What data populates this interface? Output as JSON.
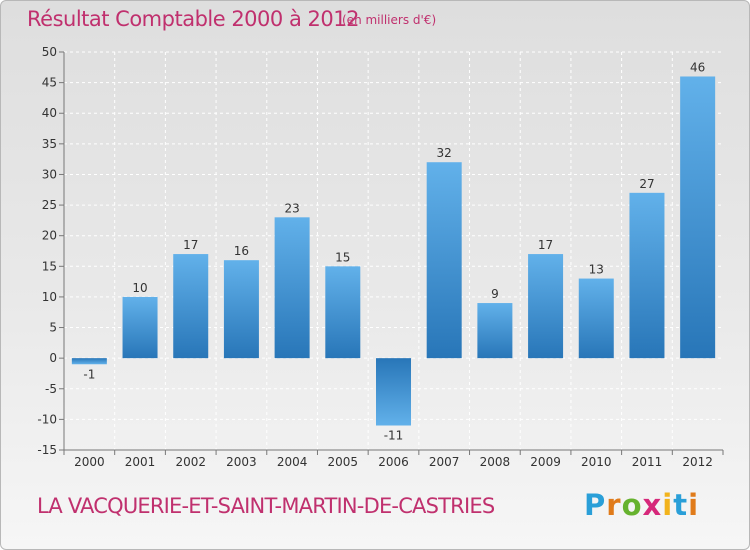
{
  "title": "Résultat Comptable 2000 à 2012",
  "subtitle": "(en milliers d'€)",
  "location": "LA VACQUERIE-ET-SAINT-MARTIN-DE-CASTRIES",
  "brand": {
    "letters": [
      "P",
      "r",
      "o",
      "x",
      "i",
      "t",
      "i"
    ],
    "colors": [
      "#2a9fd8",
      "#e07b1a",
      "#66b22e",
      "#d6287a",
      "#f2b31c",
      "#2a9fd8",
      "#e07b1a"
    ]
  },
  "colors": {
    "title": "#c0306e",
    "bar_light": "#62b1ea",
    "bar_dark": "#2876b8"
  },
  "chart_data": {
    "type": "bar",
    "categories": [
      "2000",
      "2001",
      "2002",
      "2003",
      "2004",
      "2005",
      "2006",
      "2007",
      "2008",
      "2009",
      "2010",
      "2011",
      "2012"
    ],
    "values": [
      -1,
      10,
      17,
      16,
      23,
      15,
      -11,
      32,
      9,
      17,
      13,
      27,
      46
    ],
    "data_labels": [
      "-1",
      "10",
      "17",
      "16",
      "23",
      "15",
      "-11",
      "32",
      "9",
      "17",
      "13",
      "27",
      "46"
    ],
    "ylim": [
      -15,
      50
    ],
    "yticks": [
      -15,
      -10,
      -5,
      0,
      5,
      10,
      15,
      20,
      25,
      30,
      35,
      40,
      45,
      50
    ],
    "grid": true,
    "xlabel": "",
    "ylabel": ""
  }
}
